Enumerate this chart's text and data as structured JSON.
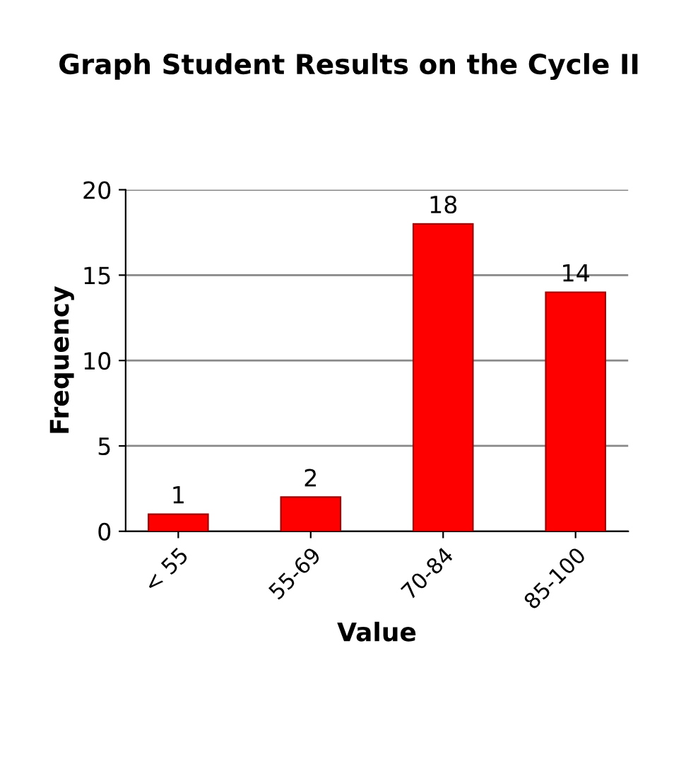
{
  "chart_data": {
    "type": "bar",
    "title": "Graph Student Results on the Cycle II",
    "xlabel": "Value",
    "ylabel": "Frequency",
    "categories": [
      "< 55",
      "55-69",
      "70-84",
      "85-100"
    ],
    "values": [
      1,
      2,
      18,
      14
    ],
    "color": "#ff0000",
    "ylim": [
      0,
      20
    ],
    "yticks": [
      0,
      5,
      10,
      15,
      20
    ],
    "grid": "y",
    "data_labels": true
  }
}
